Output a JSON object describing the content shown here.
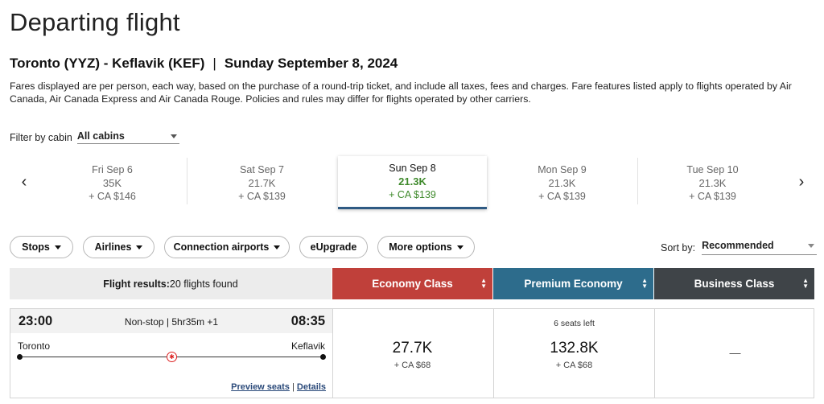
{
  "page": {
    "title": "Departing flight"
  },
  "route": {
    "cities": "Toronto (YYZ) - Keflavik (KEF)",
    "separator": "|",
    "date": "Sunday September 8, 2024"
  },
  "fare_note": "Fares displayed are per person, each way, based on the purchase of a round-trip ticket, and include all taxes, fees and charges. Fare features listed apply to flights operated by Air Canada, Air Canada Express and Air Canada Rouge. Policies and rules may differ for flights operated by other carriers.",
  "cabin_filter": {
    "label": "Filter by cabin",
    "value": "All cabins"
  },
  "date_strip": {
    "prev_icon": "‹",
    "next_icon": "›",
    "dates": [
      {
        "day": "Fri Sep 6",
        "points": "35K",
        "cash": "+ CA $146"
      },
      {
        "day": "Sat Sep 7",
        "points": "21.7K",
        "cash": "+ CA $139"
      },
      {
        "day": "Sun Sep 8",
        "points": "21.3K",
        "cash": "+ CA $139"
      },
      {
        "day": "Mon Sep 9",
        "points": "21.3K",
        "cash": "+ CA $139"
      },
      {
        "day": "Tue Sep 10",
        "points": "21.3K",
        "cash": "+ CA $139"
      }
    ],
    "selected_index": 2
  },
  "filters": {
    "stops": "Stops",
    "airlines": "Airlines",
    "connection_airports": "Connection airports",
    "eupgrade": "eUpgrade",
    "more_options": "More options"
  },
  "sort": {
    "label": "Sort by:",
    "value": "Recommended"
  },
  "results": {
    "label": "Flight results:",
    "count": "20 flights found"
  },
  "cabins": [
    {
      "name": "Economy Class",
      "color": "#c0403a"
    },
    {
      "name": "Premium Economy",
      "color": "#2d6c8c"
    },
    {
      "name": "Business Class",
      "color": "#3f4448"
    }
  ],
  "flight": {
    "departure_time": "23:00",
    "arrival_time": "08:35",
    "stop_info": "Non-stop | 5hr35m +1",
    "origin": "Toronto",
    "destination": "Keflavik",
    "carrier_icon": "maple-leaf-icon",
    "links": {
      "preview": "Preview seats",
      "separator": "|",
      "details": "Details"
    },
    "fares": {
      "economy": {
        "points": "27.7K",
        "cash": "+ CA $68"
      },
      "premium": {
        "seats": "6 seats left",
        "points": "132.8K",
        "cash": "+ CA $68"
      },
      "business": {
        "value": "—"
      }
    }
  }
}
